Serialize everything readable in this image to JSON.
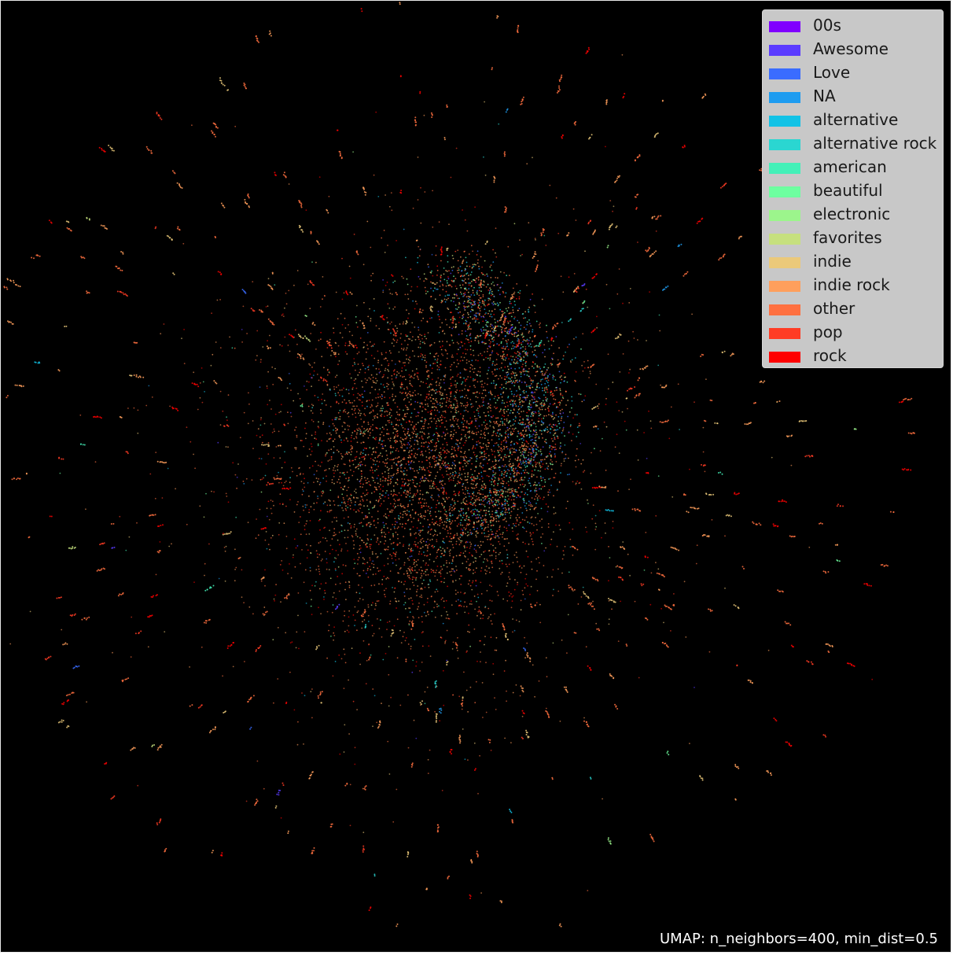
{
  "chart_data": {
    "type": "scatter",
    "title": "",
    "caption": "UMAP: n_neighbors=400, min_dist=0.5",
    "background": "#000000",
    "axes_visible": false,
    "grid": false,
    "legend_position": "top-right",
    "xlim": [
      0,
      1
    ],
    "ylim": [
      0,
      1
    ],
    "series": [
      {
        "name": "00s",
        "color": "#8000ff"
      },
      {
        "name": "Awesome",
        "color": "#5b3cff"
      },
      {
        "name": "Love",
        "color": "#3a6cff"
      },
      {
        "name": "NA",
        "color": "#1e9cf0"
      },
      {
        "name": "alternative",
        "color": "#12c2e6"
      },
      {
        "name": "alternative rock",
        "color": "#2ad6d1"
      },
      {
        "name": "american",
        "color": "#44f0b8"
      },
      {
        "name": "beautiful",
        "color": "#6effa0"
      },
      {
        "name": "electronic",
        "color": "#9cf58c"
      },
      {
        "name": "favorites",
        "color": "#c6e07e"
      },
      {
        "name": "indie",
        "color": "#ebc97a"
      },
      {
        "name": "indie rock",
        "color": "#ff9f5c"
      },
      {
        "name": "other",
        "color": "#ff7040"
      },
      {
        "name": "pop",
        "color": "#ff3c24"
      },
      {
        "name": "rock",
        "color": "#ff0000"
      }
    ]
  }
}
